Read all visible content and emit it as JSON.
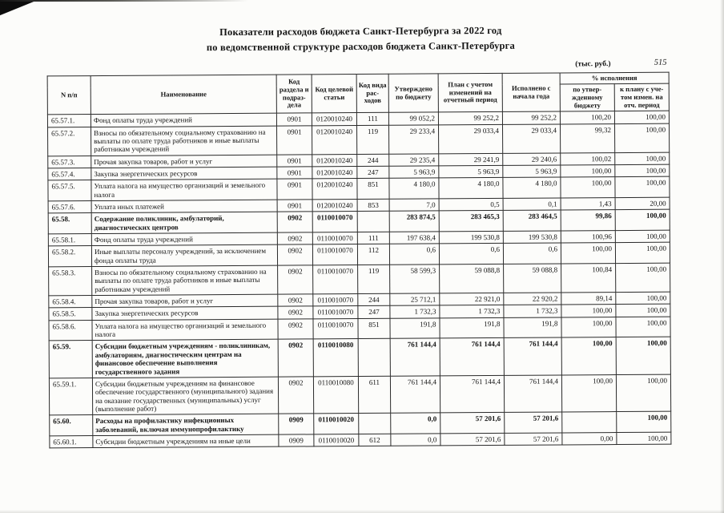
{
  "page": {
    "title_line1": "Показатели расходов бюджета Санкт-Петербурга за 2022 год",
    "title_line2": "по ведомственной структуре расходов бюджета Санкт-Петербурга",
    "units_note": "(тыс. руб.)",
    "page_number": "515"
  },
  "table": {
    "headers": {
      "num": "N п/п",
      "name": "Наименование",
      "section_code": "Код раздела и подраз- дела",
      "target_code": "Код целевой статьи",
      "type_code": "Код вида рас- ходов",
      "approved": "Утверждено по бюджету",
      "plan": "План с учетом изменений на отчетный период",
      "executed": "Исполнено с начала года",
      "pct_group": "% исполнения",
      "pct_budget": "по утвер- жденному бюджету",
      "pct_plan": "к плану с уче- том измен. на отч. период"
    },
    "rows": [
      {
        "num": "65.57.1.",
        "bold": false,
        "name": "Фонд оплаты труда учреждений",
        "code1": "0901",
        "code2": "0120010240",
        "code3": "111",
        "approved": "99 052,2",
        "plan": "99 252,2",
        "executed": "99 252,2",
        "pct1": "100,20",
        "pct2": "100,00"
      },
      {
        "num": "65.57.2.",
        "bold": false,
        "name": "Взносы по обязательному социальному страхованию на выплаты по оплате труда работников и иные выплаты работникам учреждений",
        "code1": "0901",
        "code2": "0120010240",
        "code3": "119",
        "approved": "29 233,4",
        "plan": "29 033,4",
        "executed": "29 033,4",
        "pct1": "99,32",
        "pct2": "100,00"
      },
      {
        "num": "65.57.3.",
        "bold": false,
        "name": "Прочая закупка товаров, работ и услуг",
        "code1": "0901",
        "code2": "0120010240",
        "code3": "244",
        "approved": "29 235,4",
        "plan": "29 241,9",
        "executed": "29 240,6",
        "pct1": "100,02",
        "pct2": "100,00"
      },
      {
        "num": "65.57.4.",
        "bold": false,
        "name": "Закупка энергетических ресурсов",
        "code1": "0901",
        "code2": "0120010240",
        "code3": "247",
        "approved": "5 963,9",
        "plan": "5 963,9",
        "executed": "5 963,9",
        "pct1": "100,00",
        "pct2": "100,00"
      },
      {
        "num": "65.57.5.",
        "bold": false,
        "name": "Уплата налога на имущество организаций и земельного налога",
        "code1": "0901",
        "code2": "0120010240",
        "code3": "851",
        "approved": "4 180,0",
        "plan": "4 180,0",
        "executed": "4 180,0",
        "pct1": "100,00",
        "pct2": "100,00"
      },
      {
        "num": "65.57.6.",
        "bold": false,
        "name": "Уплата иных платежей",
        "code1": "0901",
        "code2": "0120010240",
        "code3": "853",
        "approved": "7,0",
        "plan": "0,5",
        "executed": "0,1",
        "pct1": "1,43",
        "pct2": "20,00"
      },
      {
        "num": "65.58.",
        "bold": true,
        "name": "Содержание поликлиник, амбулаторий, диагностических центров",
        "code1": "0902",
        "code2": "0110010070",
        "code3": "",
        "approved": "283 874,5",
        "plan": "283 465,3",
        "executed": "283 464,5",
        "pct1": "99,86",
        "pct2": "100,00"
      },
      {
        "num": "65.58.1.",
        "bold": false,
        "name": "Фонд оплаты труда учреждений",
        "code1": "0902",
        "code2": "0110010070",
        "code3": "111",
        "approved": "197 638,4",
        "plan": "199 530,8",
        "executed": "199 530,8",
        "pct1": "100,96",
        "pct2": "100,00"
      },
      {
        "num": "65.58.2.",
        "bold": false,
        "name": "Иные выплаты персоналу учреждений, за исключением фонда оплаты труда",
        "code1": "0902",
        "code2": "0110010070",
        "code3": "112",
        "approved": "0,6",
        "plan": "0,6",
        "executed": "0,6",
        "pct1": "100,00",
        "pct2": "100,00"
      },
      {
        "num": "65.58.3.",
        "bold": false,
        "name": "Взносы по обязательному социальному страхованию на выплаты по оплате труда работников и иные выплаты работникам учреждений",
        "code1": "0902",
        "code2": "0110010070",
        "code3": "119",
        "approved": "58 599,3",
        "plan": "59 088,8",
        "executed": "59 088,8",
        "pct1": "100,84",
        "pct2": "100,00"
      },
      {
        "num": "65.58.4.",
        "bold": false,
        "name": "Прочая закупка товаров, работ и услуг",
        "code1": "0902",
        "code2": "0110010070",
        "code3": "244",
        "approved": "25 712,1",
        "plan": "22 921,0",
        "executed": "22 920,2",
        "pct1": "89,14",
        "pct2": "100,00"
      },
      {
        "num": "65.58.5.",
        "bold": false,
        "name": "Закупка энергетических ресурсов",
        "code1": "0902",
        "code2": "0110010070",
        "code3": "247",
        "approved": "1 732,3",
        "plan": "1 732,3",
        "executed": "1 732,3",
        "pct1": "100,00",
        "pct2": "100,00"
      },
      {
        "num": "65.58.6.",
        "bold": false,
        "name": "Уплата налога на имущество организаций и земельного налога",
        "code1": "0902",
        "code2": "0110010070",
        "code3": "851",
        "approved": "191,8",
        "plan": "191,8",
        "executed": "191,8",
        "pct1": "100,00",
        "pct2": "100,00"
      },
      {
        "num": "65.59.",
        "bold": true,
        "name": "Субсидии бюджетным учреждениям - поликлиникам, амбулаториям, диагностическим центрам на финансовое обеспечение выполнения государственного задания",
        "code1": "0902",
        "code2": "0110010080",
        "code3": "",
        "approved": "761 144,4",
        "plan": "761 144,4",
        "executed": "761 144,4",
        "pct1": "100,00",
        "pct2": "100,00"
      },
      {
        "num": "65.59.1.",
        "bold": false,
        "name": "Субсидии бюджетным учреждениям на финансовое обеспечение государственного (муниципального) задания на оказание государственных (муниципальных) услуг (выполнение работ)",
        "code1": "0902",
        "code2": "0110010080",
        "code3": "611",
        "approved": "761 144,4",
        "plan": "761 144,4",
        "executed": "761 144,4",
        "pct1": "100,00",
        "pct2": "100,00"
      },
      {
        "num": "65.60.",
        "bold": true,
        "name": "Расходы на профилактику инфекционных заболеваний, включая иммунопрофилактику",
        "code1": "0909",
        "code2": "0110010020",
        "code3": "",
        "approved": "0,0",
        "plan": "57 201,6",
        "executed": "57 201,6",
        "pct1": "",
        "pct2": "100,00"
      },
      {
        "num": "65.60.1.",
        "bold": false,
        "name": "Субсидии бюджетным учреждениям на иные цели",
        "code1": "0909",
        "code2": "0110010020",
        "code3": "612",
        "approved": "0,0",
        "plan": "57 201,6",
        "executed": "57 201,6",
        "pct1": "0,00",
        "pct2": "100,00"
      }
    ]
  }
}
